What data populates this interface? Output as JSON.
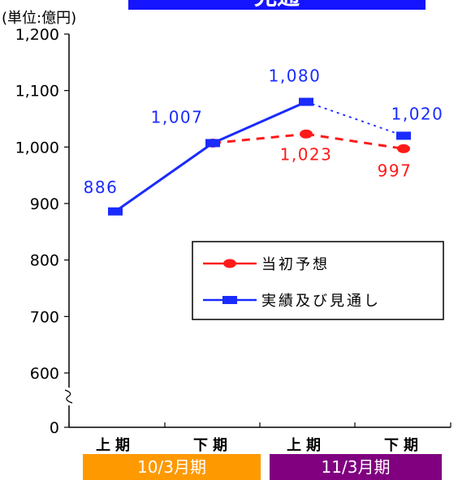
{
  "title": "見通",
  "unit_label": "(単位:億円)",
  "periods": [
    {
      "label": "10/3月期",
      "color": "#ff9900"
    },
    {
      "label": "11/3月期",
      "color": "#800080"
    }
  ],
  "chart_data": {
    "type": "line",
    "categories": [
      "上期",
      "下期",
      "上期",
      "下期"
    ],
    "y_ticks": [
      "0",
      "600",
      "700",
      "800",
      "900",
      "1,000",
      "1,100",
      "1,200"
    ],
    "y_axis_break": [
      0,
      600
    ],
    "ylim": [
      600,
      1200
    ],
    "series": [
      {
        "name": "実績及び見通し",
        "color": "#1a2bff",
        "marker": "square",
        "values": [
          886,
          1007,
          1080,
          1020
        ],
        "labels": [
          "886",
          "1,007",
          "1,080",
          "1,020"
        ],
        "line_styles": [
          "solid",
          "solid",
          "dotted"
        ]
      },
      {
        "name": "当初予想",
        "color": "#ff1a1a",
        "marker": "circle",
        "values": [
          null,
          1007,
          1023,
          997
        ],
        "labels": [
          "",
          "",
          "1,023",
          "997"
        ],
        "line_styles": [
          "dashed",
          "dashed",
          "dashed"
        ]
      }
    ],
    "legend_position": "right-middle",
    "grid": false
  }
}
